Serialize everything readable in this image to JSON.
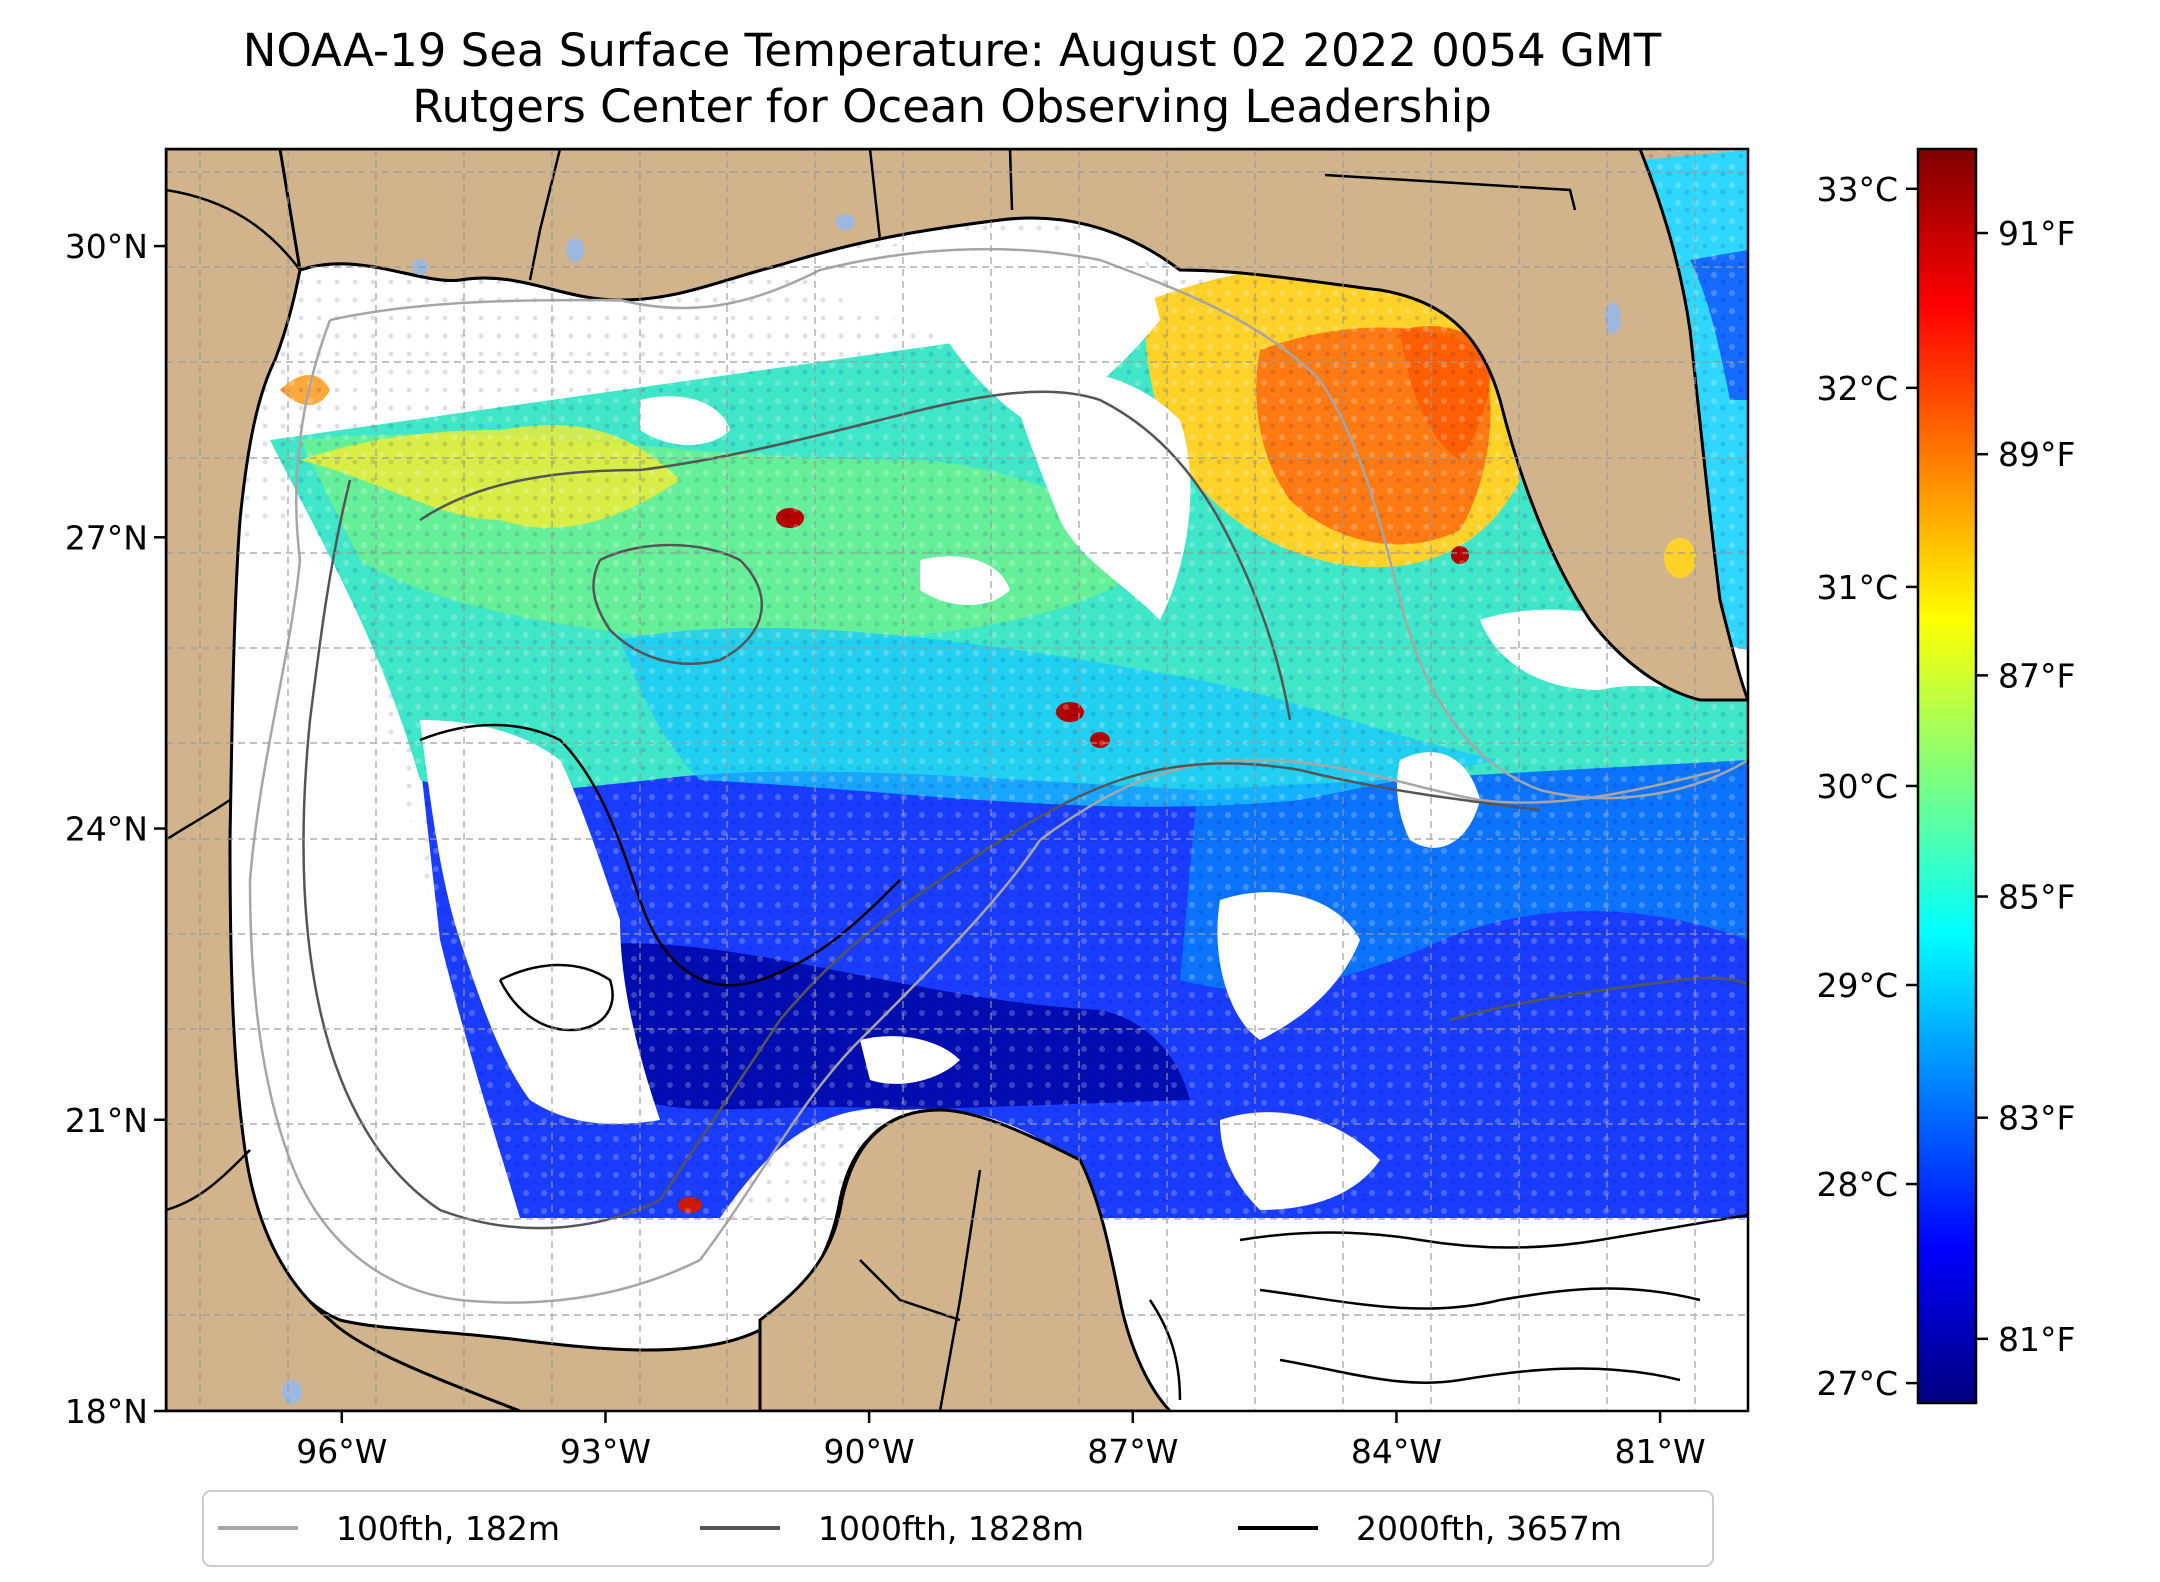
{
  "title": {
    "line1": "NOAA-19 Sea Surface Temperature: August 02 2022 0054 GMT",
    "line2": "Rutgers Center for Ocean Observing Leadership"
  },
  "map": {
    "lon_range": [
      -98,
      -80
    ],
    "lat_range": [
      18,
      31
    ],
    "lat_ticks": [
      {
        "value": 30,
        "label": "30°N"
      },
      {
        "value": 27,
        "label": "27°N"
      },
      {
        "value": 24,
        "label": "24°N"
      },
      {
        "value": 21,
        "label": "21°N"
      },
      {
        "value": 18,
        "label": "18°N"
      }
    ],
    "lon_ticks": [
      {
        "value": -96,
        "label": "96°W"
      },
      {
        "value": -93,
        "label": "93°W"
      },
      {
        "value": -90,
        "label": "90°W"
      },
      {
        "value": -87,
        "label": "87°W"
      },
      {
        "value": -84,
        "label": "84°W"
      },
      {
        "value": -81,
        "label": "81°W"
      }
    ]
  },
  "colorbar": {
    "colormap": "jet",
    "colors": [
      "#00007f",
      "#0000ff",
      "#007fff",
      "#00ffff",
      "#7fff7f",
      "#ffff00",
      "#ff7f00",
      "#ff0000",
      "#7f0000"
    ],
    "celsius_range": [
      26.9,
      33.2
    ],
    "celsius_ticks": [
      {
        "value": 33,
        "label": "33°C"
      },
      {
        "value": 32,
        "label": "32°C"
      },
      {
        "value": 31,
        "label": "31°C"
      },
      {
        "value": 30,
        "label": "30°C"
      },
      {
        "value": 29,
        "label": "29°C"
      },
      {
        "value": 28,
        "label": "28°C"
      },
      {
        "value": 27,
        "label": "27°C"
      }
    ],
    "fahrenheit_ticks": [
      {
        "value": 91,
        "label": "91°F"
      },
      {
        "value": 89,
        "label": "89°F"
      },
      {
        "value": 87,
        "label": "87°F"
      },
      {
        "value": 85,
        "label": "85°F"
      },
      {
        "value": 83,
        "label": "83°F"
      },
      {
        "value": 81,
        "label": "81°F"
      }
    ]
  },
  "legend": {
    "items": [
      {
        "label": "100fth, 182m",
        "color": "#a6a6a6"
      },
      {
        "label": "1000fth, 1828m",
        "color": "#555555"
      },
      {
        "label": "2000fth, 3657m",
        "color": "#000000"
      }
    ]
  },
  "colors": {
    "land": "#d2b48c",
    "lakes": "#9db7df",
    "no_data": "#ffffff"
  }
}
